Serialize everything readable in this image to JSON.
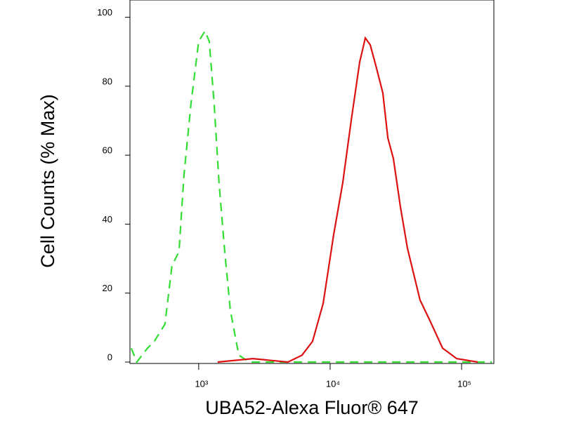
{
  "chart_data": {
    "type": "line",
    "x_label": "UBA52-Alexa Fluor® 647",
    "y_label": "Cell Counts (% Max)",
    "xscale": "log",
    "xlim": [
      300,
      176000
    ],
    "ylim": [
      0,
      105
    ],
    "xticks": [
      {
        "value": 1000,
        "label": "10³"
      },
      {
        "value": 10000,
        "label": "10⁴"
      },
      {
        "value": 100000,
        "label": "10⁵"
      }
    ],
    "yticks": [
      0,
      20,
      40,
      60,
      80,
      100
    ],
    "series": [
      {
        "color": "#33dd33",
        "dash": true,
        "x": [
          307,
          338,
          407,
          460,
          554,
          626,
          708,
          772,
          874,
          1000,
          1117,
          1203,
          1311,
          1429,
          1578,
          1741,
          2018,
          2427,
          170000
        ],
        "values": [
          4,
          0,
          4,
          6,
          11,
          28,
          32,
          54,
          75,
          93,
          96,
          93,
          75,
          52,
          32,
          15,
          2,
          0,
          0
        ]
      },
      {
        "color": "#dd1111",
        "dash": false,
        "x": [
          1394,
          2582,
          4777,
          6109,
          7345,
          8846,
          10640,
          12470,
          14450,
          16770,
          18510,
          20180,
          22280,
          25180,
          27470,
          30290,
          34250,
          38730,
          48310,
          57410,
          71780,
          91800,
          132700
        ],
        "values": [
          0,
          1,
          0,
          2,
          6,
          17,
          37,
          52,
          70,
          87,
          94,
          92,
          86,
          78,
          65,
          59,
          45,
          33,
          18,
          12,
          4,
          1,
          0
        ]
      }
    ]
  }
}
